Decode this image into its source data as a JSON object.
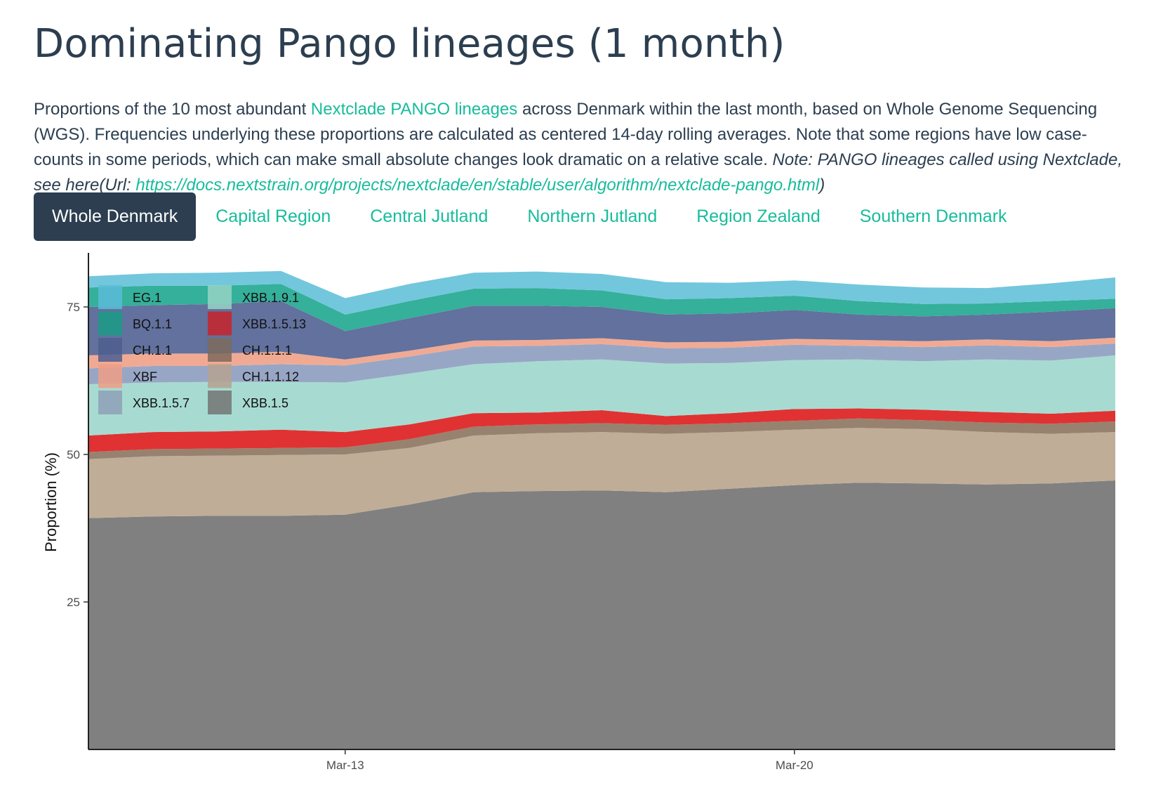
{
  "page": {
    "title": "Dominating Pango lineages (1 month)",
    "desc_part1": "Proportions of the 10 most abundant ",
    "desc_link": "Nextclade PANGO lineages",
    "desc_part2": " across Denmark within the last month, based on Whole Genome Sequencing (WGS). Frequencies underlying these proportions are calculated as centered 14-day rolling averages. Note that some regions have low case-counts in some periods, which can make small absolute changes look dramatic on a relative scale. ",
    "desc_note": "Note: PANGO lineages called using Nextclade, see here(Url: ",
    "desc_url": "https://docs.nextstrain.org/projects/nextclade/en/stable/user/algorithm/nextclade-pango.html",
    "desc_close": ")"
  },
  "tabs": [
    {
      "label": "Whole Denmark",
      "active": true
    },
    {
      "label": "Capital Region",
      "active": false
    },
    {
      "label": "Central Jutland",
      "active": false
    },
    {
      "label": "Northern Jutland",
      "active": false
    },
    {
      "label": "Region Zealand",
      "active": false
    },
    {
      "label": "Southern Denmark",
      "active": false
    }
  ],
  "chart_data": {
    "type": "area",
    "stacked": true,
    "title": "",
    "xlabel": "",
    "ylabel": "Proportion (%)",
    "ylim": [
      0,
      82
    ],
    "y_ticks": [
      25,
      50,
      75
    ],
    "x_day_range": [
      9,
      25
    ],
    "x_ticks": [
      {
        "day": 13,
        "label": "Mar-13"
      },
      {
        "day": 20,
        "label": "Mar-20"
      }
    ],
    "x": [
      9,
      10,
      11,
      12,
      13,
      14,
      15,
      16,
      17,
      18,
      19,
      20,
      21,
      22,
      23,
      24,
      25
    ],
    "legend_position": "top-left",
    "series": [
      {
        "name": "XBB.1.5",
        "color": "#808080",
        "values": [
          39.2,
          39.5,
          39.6,
          39.6,
          39.8,
          41.5,
          43.6,
          43.8,
          43.9,
          43.6,
          44.2,
          44.8,
          45.2,
          45.1,
          44.9,
          45.1,
          45.6
        ]
      },
      {
        "name": "CH.1.1.12",
        "color": "#c0ad98",
        "values": [
          10.0,
          10.2,
          10.2,
          10.3,
          10.2,
          9.6,
          9.6,
          9.8,
          9.9,
          9.9,
          9.6,
          9.4,
          9.3,
          9.2,
          8.9,
          8.4,
          8.2
        ]
      },
      {
        "name": "CH.1.1.1",
        "color": "#978270",
        "values": [
          1.2,
          1.2,
          1.2,
          1.2,
          1.2,
          1.5,
          1.5,
          1.5,
          1.5,
          1.5,
          1.5,
          1.5,
          1.6,
          1.5,
          1.6,
          1.7,
          1.8
        ]
      },
      {
        "name": "XBB.1.5.13",
        "color": "#e03232",
        "values": [
          2.8,
          2.9,
          2.9,
          3.1,
          2.6,
          2.5,
          2.3,
          2.0,
          2.2,
          1.5,
          1.7,
          2.0,
          1.7,
          1.8,
          1.8,
          1.7,
          1.8
        ]
      },
      {
        "name": "XBB.1.9.1",
        "color": "#a7dbd1",
        "values": [
          8.7,
          8.4,
          8.4,
          8.1,
          8.4,
          8.6,
          8.3,
          8.7,
          8.6,
          8.9,
          8.5,
          8.3,
          8.3,
          8.2,
          8.9,
          9.0,
          9.4
        ]
      },
      {
        "name": "XBB.1.5.7",
        "color": "#98a6c6",
        "values": [
          2.7,
          2.8,
          2.7,
          3.0,
          2.9,
          2.9,
          3.0,
          2.6,
          2.6,
          2.6,
          2.6,
          2.6,
          2.3,
          2.4,
          2.4,
          2.3,
          2.0
        ]
      },
      {
        "name": "XBF",
        "color": "#f0aa94",
        "values": [
          2.2,
          2.1,
          2.1,
          2.1,
          1.0,
          1.0,
          1.0,
          1.0,
          1.0,
          1.0,
          1.0,
          1.0,
          1.0,
          1.0,
          1.0,
          1.0,
          1.0
        ]
      },
      {
        "name": "CH.1.1",
        "color": "#62719d",
        "values": [
          8.2,
          8.2,
          8.4,
          8.6,
          4.8,
          5.5,
          5.9,
          5.8,
          5.3,
          4.7,
          4.8,
          4.9,
          4.3,
          4.2,
          4.2,
          5.0,
          5.0
        ]
      },
      {
        "name": "BQ.1.1",
        "color": "#35b09a",
        "values": [
          3.3,
          3.3,
          3.1,
          2.9,
          2.8,
          2.9,
          2.9,
          3.0,
          2.8,
          2.6,
          2.6,
          2.4,
          2.3,
          2.1,
          1.9,
          1.8,
          1.6
        ]
      },
      {
        "name": "EG.1",
        "color": "#72c7dd",
        "values": [
          1.9,
          2.1,
          2.2,
          2.2,
          2.8,
          2.9,
          2.7,
          2.8,
          2.8,
          2.9,
          2.6,
          2.6,
          2.8,
          2.8,
          2.6,
          3.0,
          3.6
        ]
      }
    ],
    "legend_order": [
      "EG.1",
      "BQ.1.1",
      "CH.1.1",
      "XBF",
      "XBB.1.5.7",
      "XBB.1.9.1",
      "XBB.1.5.13",
      "CH.1.1.1",
      "CH.1.1.12",
      "XBB.1.5"
    ],
    "legend_colors": {
      "EG.1": "#5bbcd8",
      "BQ.1.1": "#1b9a86",
      "CH.1.1": "#4e5e8f",
      "XBF": "#ee9e86",
      "XBB.1.5.7": "#8ea0b8",
      "XBB.1.9.1": "#95d4c6",
      "XBB.1.5.13": "#c8232a",
      "CH.1.1.1": "#7e6a5c",
      "CH.1.1.12": "#b5a291",
      "XBB.1.5": "#747474"
    }
  }
}
